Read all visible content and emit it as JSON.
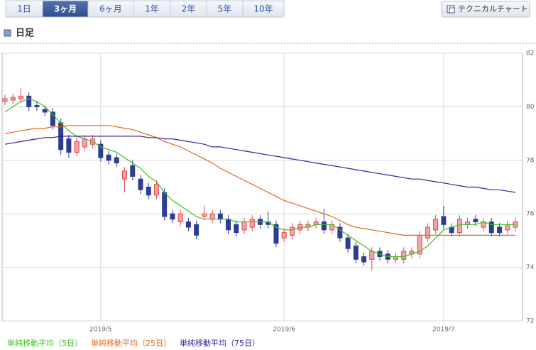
{
  "tabs": [
    "1日",
    "3ヶ月",
    "6ヶ月",
    "1年",
    "2年",
    "5年",
    "10年"
  ],
  "active_tab": 1,
  "button": "テクニカルチャート",
  "section_title": "日足",
  "chart_data": {
    "type": "candlestick",
    "categories": [
      null,
      null,
      null,
      null,
      null,
      null,
      null,
      null,
      null,
      null,
      null,
      null,
      "2019/5",
      null,
      null,
      null,
      null,
      null,
      null,
      null,
      null,
      null,
      null,
      null,
      null,
      null,
      null,
      null,
      null,
      null,
      null,
      null,
      null,
      null,
      null,
      "2019/6",
      null,
      null,
      null,
      null,
      null,
      null,
      null,
      null,
      null,
      null,
      null,
      null,
      null,
      null,
      null,
      null,
      null,
      null,
      null,
      "2019/7",
      null,
      null,
      null,
      null,
      null,
      null,
      null,
      null,
      null
    ],
    "candles": {
      "up_color": "#e0474c",
      "down_color": "#2c3e93",
      "open": [
        80.2,
        80.25,
        80.3,
        80.4,
        80.05,
        79.9,
        79.8,
        79.4,
        78.8,
        78.3,
        78.5,
        78.6,
        78.6,
        78.2,
        78.1,
        77.3,
        77.8,
        77.3,
        77.0,
        76.7,
        76.8,
        76.0,
        75.7,
        75.7,
        75.6,
        75.9,
        75.8,
        76.0,
        75.8,
        75.6,
        75.4,
        75.5,
        75.8,
        75.7,
        75.6,
        75.1,
        75.2,
        75.4,
        75.5,
        75.6,
        75.7,
        75.4,
        75.5,
        75.1,
        74.8,
        74.4,
        74.3,
        74.6,
        74.5,
        74.3,
        74.3,
        74.5,
        74.5,
        75.1,
        75.4,
        75.9,
        75.5,
        75.3,
        75.6,
        75.8,
        75.5,
        75.7,
        75.5,
        75.4,
        75.5
      ],
      "high": [
        80.45,
        80.5,
        80.7,
        80.55,
        80.2,
        80.05,
        79.95,
        79.55,
        78.95,
        78.85,
        78.95,
        78.95,
        78.75,
        78.35,
        78.25,
        77.75,
        78.0,
        77.45,
        77.15,
        77.25,
        76.95,
        76.15,
        76.15,
        75.85,
        75.75,
        76.3,
        76.15,
        76.15,
        75.95,
        75.75,
        75.85,
        75.95,
        75.95,
        76.1,
        75.75,
        75.45,
        75.65,
        75.75,
        75.75,
        75.85,
        76.2,
        75.75,
        75.65,
        75.25,
        74.95,
        74.55,
        74.75,
        74.75,
        74.65,
        74.55,
        74.75,
        74.75,
        75.35,
        75.65,
        75.95,
        76.3,
        75.65,
        75.95,
        75.85,
        75.95,
        75.85,
        75.85,
        75.65,
        75.75,
        75.85
      ],
      "low": [
        80.05,
        80.1,
        80.15,
        79.85,
        79.85,
        79.65,
        79.15,
        78.2,
        78.1,
        78.15,
        78.35,
        78.45,
        77.95,
        77.85,
        77.75,
        76.8,
        77.25,
        76.75,
        76.55,
        76.55,
        75.75,
        75.65,
        75.55,
        75.35,
        75.05,
        75.75,
        75.65,
        75.65,
        75.25,
        75.15,
        75.25,
        75.35,
        75.45,
        75.45,
        74.75,
        74.95,
        75.05,
        75.25,
        75.35,
        75.45,
        75.25,
        75.25,
        74.95,
        74.55,
        74.15,
        74.05,
        73.9,
        74.25,
        74.15,
        74.15,
        74.15,
        74.35,
        74.35,
        74.95,
        75.25,
        75.45,
        75.15,
        75.15,
        75.45,
        75.55,
        75.35,
        75.15,
        75.15,
        75.25,
        75.35
      ],
      "close": [
        80.3,
        80.35,
        80.4,
        80.0,
        80.0,
        79.8,
        79.3,
        78.4,
        78.3,
        78.7,
        78.8,
        78.8,
        78.1,
        78.0,
        77.9,
        77.6,
        77.4,
        76.9,
        76.7,
        77.1,
        75.9,
        75.8,
        76.0,
        75.5,
        75.2,
        76.0,
        76.0,
        75.8,
        75.4,
        75.3,
        75.7,
        75.8,
        75.6,
        75.6,
        74.9,
        75.3,
        75.5,
        75.6,
        75.6,
        75.7,
        75.4,
        75.6,
        75.1,
        74.7,
        74.3,
        74.2,
        74.6,
        74.4,
        74.3,
        74.4,
        74.6,
        74.6,
        75.2,
        75.5,
        75.8,
        75.6,
        75.3,
        75.8,
        75.7,
        75.7,
        75.7,
        75.3,
        75.3,
        75.6,
        75.7
      ]
    },
    "series": [
      {
        "name": "単純移動平均（5日）",
        "color": "#3fbf1f",
        "values": [
          79.8,
          80.0,
          80.2,
          80.3,
          80.2,
          80.0,
          79.7,
          79.4,
          79.1,
          78.9,
          78.8,
          78.7,
          78.5,
          78.4,
          78.3,
          78.1,
          77.9,
          77.7,
          77.4,
          77.2,
          76.8,
          76.5,
          76.3,
          76.1,
          75.9,
          75.8,
          75.8,
          75.8,
          75.8,
          75.7,
          75.7,
          75.7,
          75.7,
          75.7,
          75.5,
          75.4,
          75.4,
          75.5,
          75.5,
          75.6,
          75.6,
          75.6,
          75.4,
          75.2,
          75.0,
          74.8,
          74.6,
          74.5,
          74.4,
          74.4,
          74.4,
          74.5,
          74.6,
          74.8,
          75.1,
          75.4,
          75.5,
          75.6,
          75.6,
          75.6,
          75.7,
          75.6,
          75.6,
          75.6,
          75.6
        ]
      },
      {
        "name": "単純移動平均（25日）",
        "color": "#e06a1c",
        "values": [
          79.0,
          79.05,
          79.1,
          79.15,
          79.2,
          79.2,
          79.25,
          79.25,
          79.3,
          79.3,
          79.3,
          79.3,
          79.3,
          79.3,
          79.25,
          79.2,
          79.15,
          79.05,
          78.95,
          78.85,
          78.7,
          78.6,
          78.5,
          78.35,
          78.2,
          78.05,
          77.9,
          77.7,
          77.55,
          77.4,
          77.25,
          77.1,
          76.95,
          76.8,
          76.65,
          76.5,
          76.4,
          76.3,
          76.2,
          76.1,
          76.0,
          75.9,
          75.75,
          75.6,
          75.5,
          75.45,
          75.4,
          75.35,
          75.3,
          75.25,
          75.2,
          75.2,
          75.2,
          75.2,
          75.2,
          75.2,
          75.2,
          75.2,
          75.2,
          75.2,
          75.2,
          75.2,
          75.2,
          75.2,
          75.2
        ]
      },
      {
        "name": "単純移動平均（75日）",
        "color": "#3a1e9c",
        "values": [
          78.6,
          78.65,
          78.7,
          78.75,
          78.8,
          78.85,
          78.85,
          78.9,
          78.9,
          78.9,
          78.9,
          78.9,
          78.9,
          78.9,
          78.9,
          78.9,
          78.9,
          78.9,
          78.85,
          78.85,
          78.8,
          78.8,
          78.75,
          78.7,
          78.65,
          78.6,
          78.5,
          78.5,
          78.45,
          78.4,
          78.35,
          78.3,
          78.25,
          78.2,
          78.15,
          78.1,
          78.05,
          78.0,
          77.95,
          77.9,
          77.85,
          77.8,
          77.75,
          77.7,
          77.65,
          77.6,
          77.55,
          77.5,
          77.45,
          77.4,
          77.35,
          77.3,
          77.3,
          77.25,
          77.2,
          77.15,
          77.1,
          77.05,
          77.0,
          77.0,
          76.95,
          76.9,
          76.9,
          76.85,
          76.8
        ]
      }
    ],
    "ylim": [
      72,
      82
    ],
    "yticks": [
      72,
      74,
      76,
      78,
      80,
      82
    ],
    "grid": true
  }
}
